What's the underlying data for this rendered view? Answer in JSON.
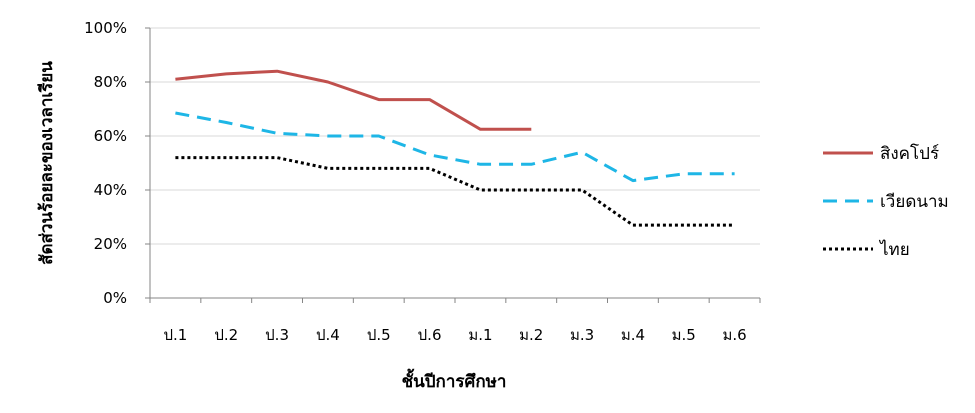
{
  "chart_data": {
    "type": "line",
    "categories": [
      "ป.1",
      "ป.2",
      "ป.3",
      "ป.4",
      "ป.5",
      "ป.6",
      "ม.1",
      "ม.2",
      "ม.3",
      "ม.4",
      "ม.5",
      "ม.6"
    ],
    "series": [
      {
        "name": "สิงคโปร์",
        "color": "#C0504D",
        "style": "solid",
        "values": [
          81,
          83,
          84,
          80,
          73.5,
          73.5,
          62.5,
          62.5,
          null,
          null,
          null,
          null
        ]
      },
      {
        "name": "เวียดนาม",
        "color": "#1EB6E6",
        "style": "dashed",
        "values": [
          68.5,
          65,
          61,
          60,
          60,
          53,
          49.5,
          49.5,
          54,
          43.5,
          46,
          46
        ]
      },
      {
        "name": "ไทย",
        "color": "#000000",
        "style": "dotted",
        "values": [
          52,
          52,
          52,
          48,
          48,
          48,
          40,
          40,
          40,
          27,
          27,
          27
        ]
      }
    ],
    "yticks": [
      0,
      20,
      40,
      60,
      80,
      100
    ],
    "ytick_labels": [
      "0%",
      "20%",
      "40%",
      "60%",
      "80%",
      "100%"
    ],
    "ylim": [
      0,
      100
    ],
    "xlabel": "ชั้นปีการศึกษา",
    "ylabel": "สัดส่วนร้อยละของเวลาเรียน",
    "title": "",
    "grid": "horizontal",
    "legend_position": "right"
  }
}
